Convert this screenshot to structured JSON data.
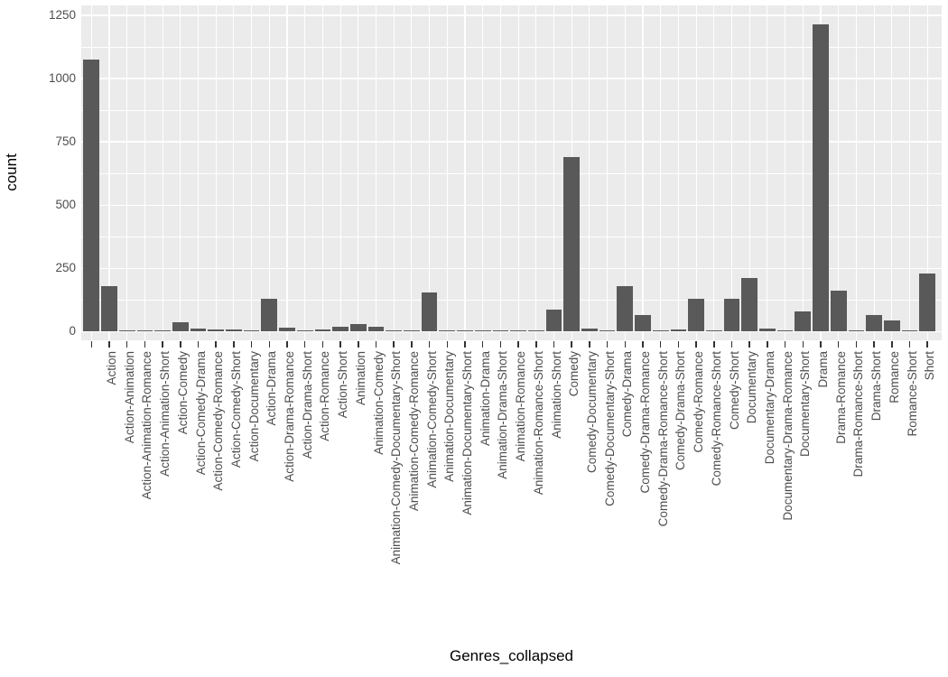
{
  "chart_data": {
    "type": "bar",
    "title": "",
    "xlabel": "Genres_collapsed",
    "ylabel": "count",
    "bar_color": "#595959",
    "panel_background": "#EBEBEB",
    "grid_color": "#ffffff",
    "legend": "none",
    "ylim": [
      0,
      1290
    ],
    "ytick_values": [
      0,
      250,
      500,
      750,
      1000,
      1250
    ],
    "ytick_labels": [
      "0",
      "250",
      "500",
      "750",
      "1000",
      "1250"
    ],
    "ytick_minor_values": [
      125,
      375,
      625,
      875,
      1125
    ],
    "categories": [
      "",
      "Action",
      "Action-Animation",
      "Action-Animation-Romance",
      "Action-Animation-Short",
      "Action-Comedy",
      "Action-Comedy-Drama",
      "Action-Comedy-Romance",
      "Action-Comedy-Short",
      "Action-Documentary",
      "Action-Drama",
      "Action-Drama-Romance",
      "Action-Drama-Short",
      "Action-Romance",
      "Action-Short",
      "Animation",
      "Animation-Comedy",
      "Animation-Comedy-Documentary-Short",
      "Animation-Comedy-Romance",
      "Animation-Comedy-Short",
      "Animation-Documentary",
      "Animation-Documentary-Short",
      "Animation-Drama",
      "Animation-Drama-Short",
      "Animation-Romance",
      "Animation-Romance-Short",
      "Animation-Short",
      "Comedy",
      "Comedy-Documentary",
      "Comedy-Documentary-Short",
      "Comedy-Drama",
      "Comedy-Drama-Romance",
      "Comedy-Drama-Romance-Short",
      "Comedy-Drama-Short",
      "Comedy-Romance",
      "Comedy-Romance-Short",
      "Comedy-Short",
      "Documentary",
      "Documentary-Drama",
      "Documentary-Drama-Romance",
      "Documentary-Short",
      "Drama",
      "Drama-Romance",
      "Drama-Romance-Short",
      "Drama-Short",
      "Romance",
      "Romance-Short",
      "Short"
    ],
    "values": [
      1075,
      180,
      2,
      2,
      2,
      38,
      12,
      7,
      9,
      2,
      129,
      15,
      3,
      8,
      18,
      28,
      18,
      5,
      2,
      155,
      3,
      2,
      2,
      2,
      2,
      2,
      87,
      690,
      10,
      2,
      181,
      66,
      1,
      9,
      130,
      2,
      130,
      210,
      12,
      3,
      79,
      1215,
      161,
      2,
      64,
      45,
      2,
      229
    ]
  }
}
